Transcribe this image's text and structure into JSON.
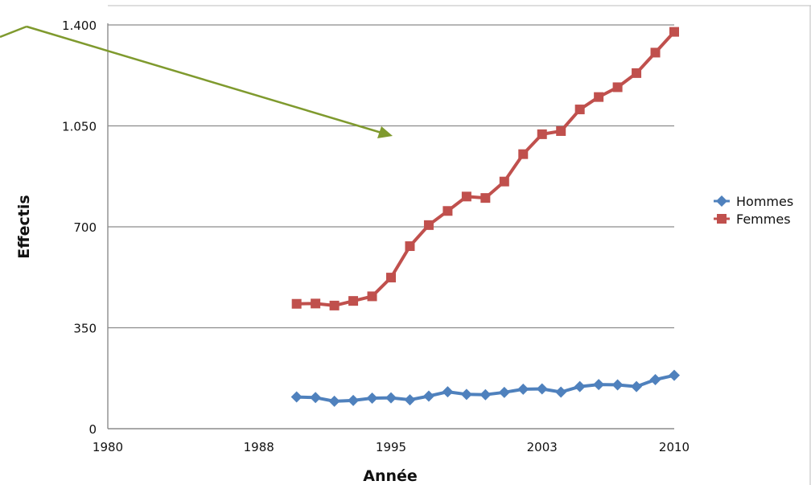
{
  "chart_data": {
    "type": "line",
    "xlabel": "Année",
    "ylabel": "Effectis",
    "xlim": [
      1980,
      2010
    ],
    "ylim": [
      0,
      1400
    ],
    "x_ticks": [
      1980,
      1988,
      1995,
      2003,
      2010
    ],
    "x_tick_labels": [
      "1980",
      "1988",
      "1995",
      "2003",
      "2010"
    ],
    "y_ticks": [
      0,
      350,
      700,
      1050,
      1400
    ],
    "y_tick_labels": [
      "0",
      "350",
      "700",
      "1.050",
      "1.400"
    ],
    "grid": "horizontal",
    "legend_position": "right",
    "x": [
      1990,
      1991,
      1992,
      1993,
      1994,
      1995,
      1996,
      1997,
      1998,
      1999,
      2000,
      2001,
      2002,
      2003,
      2004,
      2005,
      2006,
      2007,
      2008,
      2009,
      2010
    ],
    "series": [
      {
        "name": "Hommes",
        "color": "#4f81bd",
        "marker": "diamond",
        "values": [
          110,
          108,
          95,
          98,
          106,
          107,
          100,
          113,
          128,
          119,
          118,
          126,
          137,
          138,
          127,
          146,
          153,
          152,
          146,
          170,
          185
        ]
      },
      {
        "name": "Femmes",
        "color": "#c0504d",
        "marker": "square",
        "values": [
          433,
          434,
          427,
          443,
          459,
          524,
          633,
          706,
          755,
          805,
          800,
          857,
          952,
          1021,
          1032,
          1107,
          1150,
          1184,
          1233,
          1304,
          1376
        ]
      }
    ],
    "annotation": {
      "type": "arrow",
      "color": "#7f9a2e"
    }
  }
}
